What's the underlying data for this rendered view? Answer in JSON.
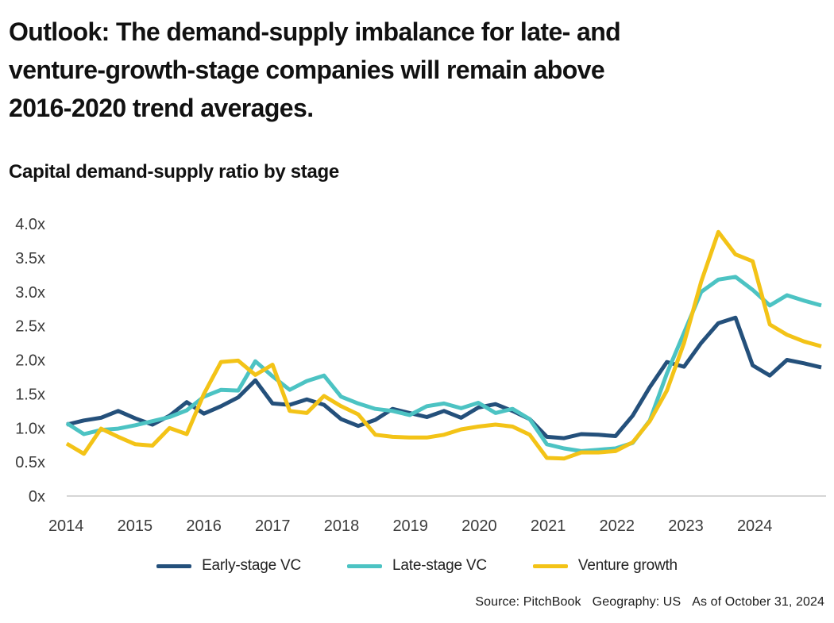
{
  "header": {
    "title_lines": [
      "Outlook: The demand-supply imbalance for late- and",
      "venture-growth-stage companies will remain above",
      "2016-2020 trend averages."
    ]
  },
  "subtitle": "Capital demand-supply ratio by stage",
  "chart_data": {
    "type": "line",
    "title": "Capital demand-supply ratio by stage",
    "xlabel": "",
    "ylabel": "",
    "grid": false,
    "legend_position": "bottom",
    "x_axis": {
      "years": [
        "2014",
        "2015",
        "2016",
        "2017",
        "2018",
        "2019",
        "2020",
        "2021",
        "2022",
        "2023",
        "2024"
      ],
      "points_per_year": 4,
      "start": "2014 Q1",
      "n_points": 45
    },
    "y_axis": {
      "unit": "x",
      "min": 0,
      "max": 4.0,
      "tick_step": 0.5,
      "ticks": [
        "0x",
        "0.5x",
        "1.0x",
        "1.5x",
        "2.0x",
        "2.5x",
        "3.0x",
        "3.5x",
        "4.0x"
      ]
    },
    "series": [
      {
        "name": "Early-stage VC",
        "color": "#24507b",
        "values": [
          1.05,
          1.11,
          1.15,
          1.25,
          1.14,
          1.05,
          1.18,
          1.38,
          1.21,
          1.32,
          1.45,
          1.7,
          1.36,
          1.34,
          1.42,
          1.34,
          1.13,
          1.03,
          1.12,
          1.28,
          1.22,
          1.16,
          1.25,
          1.15,
          1.3,
          1.35,
          1.25,
          1.13,
          0.87,
          0.85,
          0.91,
          0.9,
          0.88,
          1.18,
          1.6,
          1.97,
          1.9,
          2.25,
          2.54,
          2.62,
          1.92,
          1.77,
          2.0,
          1.95,
          1.89
        ]
      },
      {
        "name": "Late-stage VC",
        "color": "#4cc3c3",
        "values": [
          1.07,
          0.91,
          0.97,
          0.99,
          1.04,
          1.1,
          1.16,
          1.26,
          1.46,
          1.56,
          1.55,
          1.98,
          1.76,
          1.56,
          1.69,
          1.77,
          1.46,
          1.36,
          1.28,
          1.25,
          1.19,
          1.32,
          1.36,
          1.29,
          1.37,
          1.22,
          1.28,
          1.13,
          0.76,
          0.7,
          0.66,
          0.68,
          0.7,
          0.78,
          1.11,
          1.8,
          2.4,
          3.0,
          3.18,
          3.22,
          3.03,
          2.8,
          2.95,
          2.87,
          2.8
        ]
      },
      {
        "name": "Venture growth",
        "color": "#f3c317",
        "values": [
          0.77,
          0.62,
          0.99,
          0.87,
          0.76,
          0.74,
          1.0,
          0.91,
          1.5,
          1.97,
          1.99,
          1.78,
          1.93,
          1.25,
          1.22,
          1.47,
          1.32,
          1.2,
          0.9,
          0.87,
          0.86,
          0.86,
          0.9,
          0.98,
          1.02,
          1.05,
          1.02,
          0.9,
          0.56,
          0.55,
          0.64,
          0.64,
          0.66,
          0.79,
          1.1,
          1.55,
          2.25,
          3.15,
          3.88,
          3.55,
          3.45,
          2.52,
          2.37,
          2.27,
          2.2
        ]
      }
    ],
    "axis_line_color": "#c9c9c9"
  },
  "footer": {
    "source": "Source: PitchBook",
    "geography": "Geography: US",
    "as_of": "As of October 31, 2024",
    "separator": "•"
  }
}
